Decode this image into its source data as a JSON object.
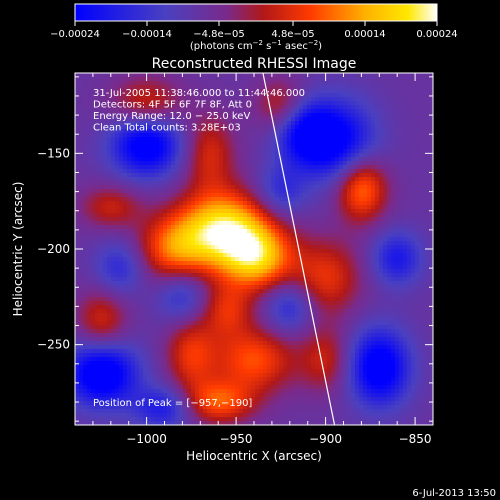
{
  "chart_data": {
    "type": "heatmap",
    "title": "Reconstructed RHESSI Image",
    "xlabel": "Heliocentric X (arcsec)",
    "ylabel": "Heliocentric Y (arcsec)",
    "xlim": [
      -1040,
      -840
    ],
    "ylim": [
      -292,
      -108
    ],
    "x_ticks": [
      -1000,
      -950,
      -900,
      -850
    ],
    "x_tick_labels": [
      "−1000",
      "−950",
      "−900",
      "−850"
    ],
    "y_ticks": [
      -150,
      -200,
      -250
    ],
    "y_tick_labels": [
      "−150",
      "−200",
      "−250"
    ],
    "colorbar": {
      "range": [
        -0.00024,
        0.00024
      ],
      "tick_labels": [
        "−0.00024",
        "−0.00014",
        "−4.8e−05",
        "4.8e−05",
        "0.00014",
        "0.00024"
      ],
      "unit_label_main": "(photons cm",
      "unit_sup1": "−2",
      "unit_mid": " s",
      "unit_sup2": "−1",
      "unit_tail": " asec",
      "unit_sup3": "−2",
      "unit_close": ")",
      "colors": [
        "#0000ff",
        "#5a3aa8",
        "#7a2a8a",
        "#cc1f1f",
        "#ff6a00",
        "#ffd200",
        "#ffffff"
      ]
    },
    "annotations": [
      "31-Jul-2005 11:38:46.000 to 11:44:46.000",
      "Detectors: 4F 5F 6F 7F 8F, Att 0",
      "Energy Range: 12.0 − 25.0 keV",
      "Clean    Total counts: 3.28E+03"
    ],
    "peak_label": "Position of Peak = [−957,−190]",
    "peak": {
      "x": -957,
      "y": -190
    },
    "limb_line": [
      {
        "x": -935,
        "y": -108
      },
      {
        "x": -895,
        "y": -292
      }
    ],
    "sources": [
      {
        "x": -957,
        "y": -190,
        "sx": 18,
        "sy": 14,
        "a": 1.0
      },
      {
        "x": -938,
        "y": -205,
        "sx": 14,
        "sy": 12,
        "a": 0.75
      },
      {
        "x": -985,
        "y": -200,
        "sx": 14,
        "sy": 12,
        "a": 0.55
      },
      {
        "x": -880,
        "y": -168,
        "sx": 10,
        "sy": 12,
        "a": 0.7
      },
      {
        "x": -900,
        "y": -215,
        "sx": 14,
        "sy": 14,
        "a": 0.45
      },
      {
        "x": -965,
        "y": -150,
        "sx": 10,
        "sy": 14,
        "a": 0.4
      },
      {
        "x": -1000,
        "y": -125,
        "sx": 14,
        "sy": 10,
        "a": 0.45
      },
      {
        "x": -925,
        "y": -125,
        "sx": 10,
        "sy": 10,
        "a": 0.35
      },
      {
        "x": -940,
        "y": -258,
        "sx": 16,
        "sy": 12,
        "a": 0.55
      },
      {
        "x": -975,
        "y": -255,
        "sx": 10,
        "sy": 14,
        "a": 0.45
      },
      {
        "x": -1025,
        "y": -238,
        "sx": 10,
        "sy": 12,
        "a": 0.4
      },
      {
        "x": -960,
        "y": -280,
        "sx": 14,
        "sy": 8,
        "a": 0.55
      },
      {
        "x": -900,
        "y": -258,
        "sx": 10,
        "sy": 12,
        "a": 0.35
      },
      {
        "x": -1020,
        "y": -178,
        "sx": 12,
        "sy": 8,
        "a": 0.35
      },
      {
        "x": -955,
        "y": -232,
        "sx": 10,
        "sy": 10,
        "a": 0.4
      },
      {
        "x": -1000,
        "y": -145,
        "sx": 14,
        "sy": 12,
        "a": -0.75
      },
      {
        "x": -910,
        "y": -140,
        "sx": 12,
        "sy": 12,
        "a": -0.7
      },
      {
        "x": -925,
        "y": -170,
        "sx": 10,
        "sy": 10,
        "a": -0.35
      },
      {
        "x": -890,
        "y": -145,
        "sx": 14,
        "sy": 16,
        "a": -0.55
      },
      {
        "x": -1025,
        "y": -265,
        "sx": 14,
        "sy": 12,
        "a": -0.8
      },
      {
        "x": -980,
        "y": -225,
        "sx": 10,
        "sy": 10,
        "a": -0.35
      },
      {
        "x": -870,
        "y": -262,
        "sx": 12,
        "sy": 14,
        "a": -0.75
      },
      {
        "x": -920,
        "y": -230,
        "sx": 10,
        "sy": 10,
        "a": -0.4
      },
      {
        "x": -1015,
        "y": -210,
        "sx": 10,
        "sy": 10,
        "a": -0.35
      },
      {
        "x": -860,
        "y": -205,
        "sx": 10,
        "sy": 10,
        "a": -0.45
      },
      {
        "x": -990,
        "y": -283,
        "sx": 12,
        "sy": 8,
        "a": -0.45
      }
    ]
  },
  "footer": {
    "timestamp": "6-Jul-2013 13:50"
  }
}
